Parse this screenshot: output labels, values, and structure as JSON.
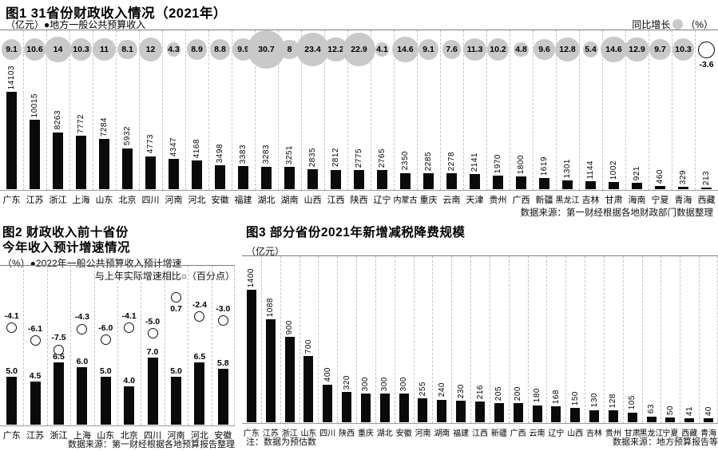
{
  "page": {
    "background": "#ffffff",
    "bar_color": "#0a0a0a",
    "bubble_color": "#c9c9c9"
  },
  "chart_data": [
    {
      "id": "chart1",
      "type": "bar+bubble",
      "title": "图1 31省份财政收入情况（2021年）",
      "left_legend": "（亿元）●地方一般公共预算收入",
      "right_legend_label": "同比增长",
      "right_legend_unit": "（%）",
      "categories": [
        "广东",
        "江苏",
        "浙江",
        "上海",
        "山东",
        "北京",
        "四川",
        "河南",
        "河北",
        "安徽",
        "福建",
        "湖北",
        "湖南",
        "山西",
        "江西",
        "陕西",
        "辽宁",
        "内蒙古",
        "重庆",
        "云南",
        "天津",
        "贵州",
        "广西",
        "新疆",
        "黑龙江",
        "吉林",
        "甘肃",
        "海南",
        "宁夏",
        "青海",
        "西藏"
      ],
      "series": [
        {
          "name": "地方一般公共预算收入",
          "unit": "亿元",
          "values": [
            14103,
            10015,
            8263,
            7772,
            7284,
            5932,
            4773,
            4347,
            4168,
            3498,
            3383,
            3283,
            3251,
            2835,
            2812,
            2775,
            2765,
            2350,
            2285,
            2278,
            2141,
            1970,
            1800,
            1619,
            1301,
            1144,
            1002,
            921,
            460,
            329,
            213
          ]
        },
        {
          "name": "同比增长",
          "unit": "%",
          "values": [
            9.1,
            10.6,
            14,
            10.3,
            11,
            8.1,
            12,
            4.3,
            8.9,
            8.8,
            9.9,
            30.7,
            8,
            23.4,
            12.2,
            22.9,
            4.1,
            14.6,
            9.1,
            7.6,
            11.3,
            10.2,
            4.8,
            9.6,
            12.8,
            5.4,
            14.6,
            12.9,
            9.7,
            10.3,
            -3.6
          ]
        }
      ],
      "source": "数据来源：第一财经根据各地财政部门数据整理"
    },
    {
      "id": "chart2",
      "type": "bar+scatter",
      "title_line1": "图2 财政收入前十省份",
      "title_line2": "今年收入预计增速情况",
      "legend_bar": "（%）●2022年一般公共预算收入预计增速",
      "legend_circle": "与上年实际增速相比○（百分点）",
      "categories": [
        "广东",
        "江苏",
        "浙江",
        "上海",
        "山东",
        "北京",
        "四川",
        "河南",
        "河北",
        "安徽"
      ],
      "series": [
        {
          "name": "2022年一般公共预算收入预计增速",
          "unit": "%",
          "values": [
            5.0,
            4.5,
            6.5,
            6.0,
            5.0,
            4.0,
            7.0,
            5.0,
            6.5,
            5.8
          ]
        },
        {
          "name": "与上年实际增速相比",
          "unit": "百分点",
          "values": [
            -4.1,
            -6.1,
            -7.5,
            -4.3,
            -6.0,
            -4.1,
            -5.0,
            0.7,
            -2.4,
            -3.0
          ]
        }
      ],
      "source": "数据来源：第一财经根据各地预算报告整理"
    },
    {
      "id": "chart3",
      "type": "bar",
      "title": "图3 部分省份2021年新增减税降费规模",
      "unit_label": "（亿元）",
      "categories": [
        "广东",
        "江苏",
        "浙江",
        "山东",
        "四川",
        "陕西",
        "重庆",
        "湖北",
        "安徽",
        "河南",
        "湖南",
        "福建",
        "江西",
        "新疆",
        "广西",
        "云南",
        "辽宁",
        "山西",
        "吉林",
        "贵州",
        "甘肃",
        "黑龙江",
        "宁夏",
        "西藏",
        "青海"
      ],
      "values": [
        1400,
        1088,
        900,
        700,
        400,
        320,
        300,
        300,
        300,
        255,
        240,
        230,
        216,
        205,
        200,
        180,
        168,
        150,
        130,
        128,
        105,
        63,
        50,
        41,
        40
      ],
      "note": "注：数据为预估数",
      "source": "数据来源：地方预算报告等"
    }
  ]
}
